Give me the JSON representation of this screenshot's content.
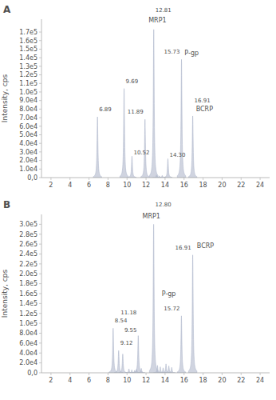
{
  "chart_data": [
    {
      "type": "peak",
      "title": "A",
      "y_label": "Intensity, cps",
      "grid": false,
      "xlim": [
        1,
        25
      ],
      "ylim": [
        0,
        185000
      ],
      "xticks": [
        2,
        4,
        6,
        8,
        10,
        12,
        14,
        16,
        18,
        20,
        22,
        24
      ],
      "yticks": [
        {
          "value": 0,
          "label": "0,0"
        },
        {
          "value": 10000,
          "label": "1.0e4"
        },
        {
          "value": 20000,
          "label": "2.0e4"
        },
        {
          "value": 30000,
          "label": "3.0e4"
        },
        {
          "value": 40000,
          "label": "4.0e4"
        },
        {
          "value": 50000,
          "label": "5.0e4"
        },
        {
          "value": 60000,
          "label": "6.0e4"
        },
        {
          "value": 70000,
          "label": "7.0e4"
        },
        {
          "value": 80000,
          "label": "8.0e4"
        },
        {
          "value": 90000,
          "label": "9.0e4"
        },
        {
          "value": 100000,
          "label": "1.0e5"
        },
        {
          "value": 110000,
          "label": "1.1e5"
        },
        {
          "value": 120000,
          "label": "1.2e5"
        },
        {
          "value": 130000,
          "label": "1.3e5"
        },
        {
          "value": 140000,
          "label": "1.4e5"
        },
        {
          "value": 150000,
          "label": "1.5e5"
        },
        {
          "value": 160000,
          "label": "1.6e5"
        },
        {
          "value": 170000,
          "label": "1.7e5"
        }
      ],
      "series": [
        {
          "color": "#b0b8cc",
          "x": [
            6.89,
            9.69,
            10.52,
            11.89,
            12.81,
            14.3,
            15.73,
            16.91
          ],
          "values": [
            71000,
            104000,
            25000,
            68000,
            173000,
            22000,
            138000,
            72000
          ],
          "x_labels": [
            "6.89",
            "9.69",
            "10.52",
            "11.89",
            "12.81",
            "14.30",
            "15.73",
            "16.91"
          ]
        },
        {
          "color": "#b0b8cc",
          "x": [
            13.1,
            13.4,
            13.7
          ],
          "values": [
            3000,
            2000,
            2500
          ]
        }
      ],
      "annotations": [
        {
          "text": "MRP1",
          "x": 12.26,
          "y": 180000
        },
        {
          "text": "P-gp",
          "x": 16.05,
          "y": 142000
        },
        {
          "text": "BCRP",
          "x": 17.25,
          "y": 76000
        }
      ]
    },
    {
      "type": "peak",
      "title": "B",
      "y_label": "Intensity, cps",
      "grid": false,
      "xlim": [
        1,
        25
      ],
      "ylim": [
        0,
        320000
      ],
      "xticks": [
        2,
        4,
        6,
        8,
        10,
        12,
        14,
        16,
        18,
        20,
        22,
        24
      ],
      "yticks": [
        {
          "value": 0,
          "label": "0,0"
        },
        {
          "value": 20000,
          "label": "2.0e4"
        },
        {
          "value": 40000,
          "label": "4.0e4"
        },
        {
          "value": 60000,
          "label": "6.0e4"
        },
        {
          "value": 80000,
          "label": "8.0e4"
        },
        {
          "value": 100000,
          "label": "1.0e5"
        },
        {
          "value": 120000,
          "label": "1.2e5"
        },
        {
          "value": 140000,
          "label": "1.4e5"
        },
        {
          "value": 160000,
          "label": "1.6e5"
        },
        {
          "value": 180000,
          "label": "1.8e5"
        },
        {
          "value": 200000,
          "label": "2.0e5"
        },
        {
          "value": 220000,
          "label": "2.2e5"
        },
        {
          "value": 240000,
          "label": "2.4e5"
        },
        {
          "value": 260000,
          "label": "2.6e5"
        },
        {
          "value": 280000,
          "label": "2.8e5"
        },
        {
          "value": 300000,
          "label": "3.0e5"
        }
      ],
      "series": [
        {
          "color": "#b0b8cc",
          "x": [
            8.54,
            9.12,
            9.55,
            11.18,
            12.8,
            15.72,
            16.91
          ],
          "values": [
            90000,
            45000,
            38000,
            75000,
            300000,
            115000,
            238000
          ],
          "x_labels": [
            "8.54",
            "9.12",
            "9.55",
            "11.18",
            "12.80",
            "15.72",
            "16.91"
          ]
        },
        {
          "color": "#b0b8cc",
          "x": [
            10.2,
            10.5,
            10.8,
            11.0,
            11.5,
            13.2,
            13.5,
            13.8,
            14.1,
            14.4,
            14.7
          ],
          "values": [
            8000,
            6000,
            5000,
            7000,
            9000,
            15000,
            12000,
            10000,
            18000,
            14000,
            11000
          ]
        }
      ],
      "annotations": [
        {
          "text": "MRP1",
          "x": 11.62,
          "y": 310000
        },
        {
          "text": "P-gp",
          "x": 13.65,
          "y": 152000
        },
        {
          "text": "BCRP",
          "x": 17.35,
          "y": 250000
        }
      ]
    }
  ]
}
